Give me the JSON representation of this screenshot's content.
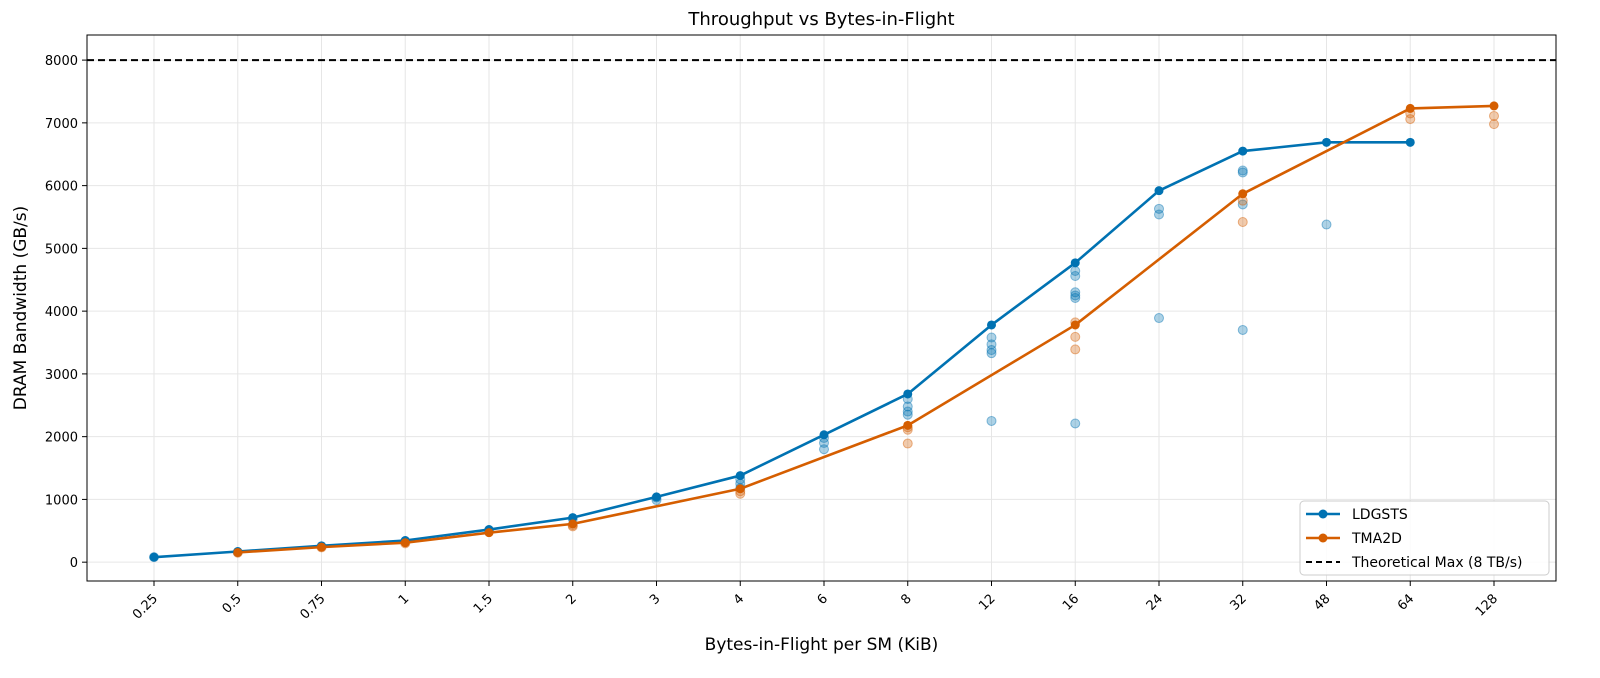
{
  "chart_data": {
    "type": "line",
    "title": "Throughput vs Bytes-in-Flight",
    "xlabel": "Bytes-in-Flight per SM (KiB)",
    "ylabel": "DRAM Bandwidth (GB/s)",
    "categories": [
      "0.25",
      "0.5",
      "0.75",
      "1",
      "1.5",
      "2",
      "3",
      "4",
      "6",
      "8",
      "12",
      "16",
      "24",
      "32",
      "48",
      "64",
      "128"
    ],
    "ylim": [
      -300,
      8400
    ],
    "yticks": [
      0,
      1000,
      2000,
      3000,
      4000,
      5000,
      6000,
      7000,
      8000
    ],
    "grid": true,
    "legend_position": "bottom-right",
    "series": [
      {
        "name": "LDGSTS",
        "color": "#0072B2",
        "x": [
          "0.25",
          "0.5",
          "0.75",
          "1",
          "1.5",
          "2",
          "3",
          "4",
          "6",
          "8",
          "12",
          "16",
          "24",
          "32",
          "48",
          "64"
        ],
        "values": [
          80,
          170,
          260,
          345,
          520,
          710,
          1040,
          1380,
          2030,
          2680,
          3780,
          4770,
          5920,
          6550,
          6690,
          6690
        ]
      },
      {
        "name": "TMA2D",
        "color": "#D55E00",
        "x": [
          "0.5",
          "0.75",
          "1",
          "1.5",
          "2",
          "4",
          "8",
          "16",
          "32",
          "64",
          "128"
        ],
        "values": [
          155,
          240,
          310,
          470,
          610,
          1170,
          2180,
          3780,
          5870,
          7230,
          7270
        ]
      }
    ],
    "scatter": [
      {
        "name": "LDGSTS samples",
        "color": "#0072B2",
        "points": [
          [
            "0.25",
            80
          ],
          [
            "0.5",
            160
          ],
          [
            "0.75",
            250
          ],
          [
            "1",
            335
          ],
          [
            "1.5",
            510
          ],
          [
            "2",
            690
          ],
          [
            "3",
            990
          ],
          [
            "3",
            1030
          ],
          [
            "4",
            1180
          ],
          [
            "4",
            1250
          ],
          [
            "4",
            1320
          ],
          [
            "6",
            1800
          ],
          [
            "6",
            1900
          ],
          [
            "6",
            1980
          ],
          [
            "8",
            2350
          ],
          [
            "8",
            2400
          ],
          [
            "8",
            2480
          ],
          [
            "8",
            2600
          ],
          [
            "12",
            2250
          ],
          [
            "12",
            3330
          ],
          [
            "12",
            3380
          ],
          [
            "12",
            3470
          ],
          [
            "12",
            3580
          ],
          [
            "16",
            2210
          ],
          [
            "16",
            4210
          ],
          [
            "16",
            4250
          ],
          [
            "16",
            4300
          ],
          [
            "16",
            4560
          ],
          [
            "16",
            4640
          ],
          [
            "24",
            3890
          ],
          [
            "24",
            5540
          ],
          [
            "24",
            5630
          ],
          [
            "32",
            3700
          ],
          [
            "32",
            5700
          ],
          [
            "32",
            6210
          ],
          [
            "32",
            6240
          ],
          [
            "48",
            5380
          ]
        ]
      },
      {
        "name": "TMA2D samples",
        "color": "#D55E00",
        "points": [
          [
            "0.5",
            150
          ],
          [
            "0.75",
            235
          ],
          [
            "1",
            300
          ],
          [
            "2",
            570
          ],
          [
            "2",
            590
          ],
          [
            "4",
            1090
          ],
          [
            "4",
            1130
          ],
          [
            "8",
            1890
          ],
          [
            "8",
            2110
          ],
          [
            "8",
            2150
          ],
          [
            "16",
            3390
          ],
          [
            "16",
            3590
          ],
          [
            "16",
            3820
          ],
          [
            "32",
            5420
          ],
          [
            "32",
            5760
          ],
          [
            "64",
            7060
          ],
          [
            "64",
            7150
          ],
          [
            "128",
            6980
          ],
          [
            "128",
            7110
          ]
        ]
      }
    ],
    "reference_line": {
      "label": "Theoretical Max (8 TB/s)",
      "value": 8000,
      "style": "dashed",
      "color": "#000000"
    }
  }
}
